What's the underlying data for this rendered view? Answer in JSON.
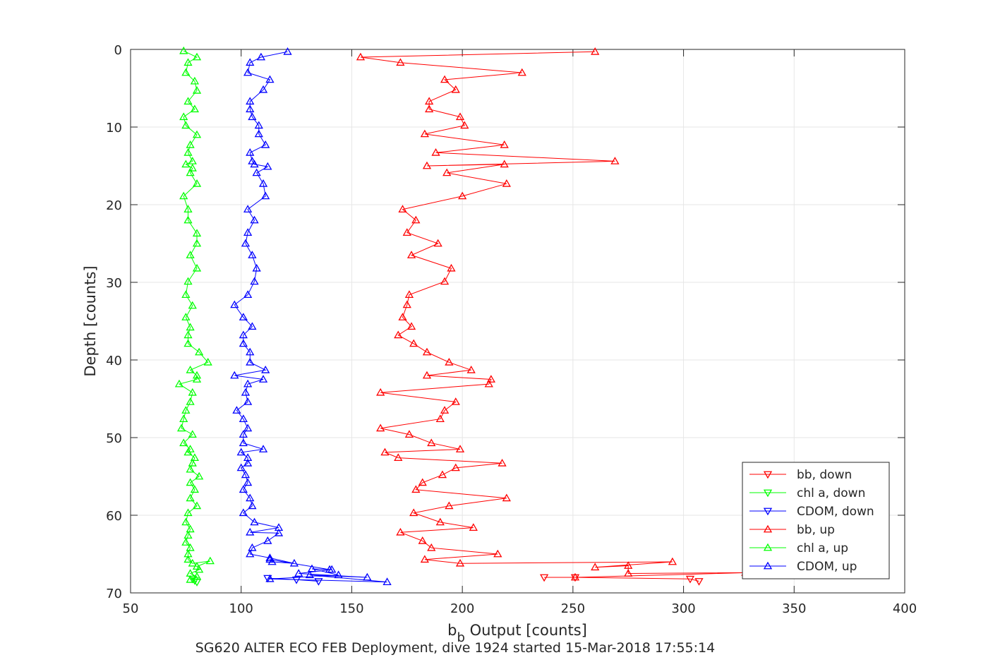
{
  "chart_data": {
    "type": "line",
    "title": "",
    "caption": "SG620 ALTER ECO FEB Deployment, dive 1924 started 15-Mar-2018 17:55:14",
    "xlabel_main": "b",
    "xlabel_sub": "b",
    "xlabel_rest": " Output [counts]",
    "ylabel": "Depth [counts]",
    "xlim": [
      50,
      400
    ],
    "ylim": [
      0,
      70
    ],
    "y_reversed": true,
    "grid": true,
    "legend_position": "bottom-right",
    "xticks": [
      50,
      100,
      150,
      200,
      250,
      300,
      350,
      400
    ],
    "yticks": [
      0,
      10,
      20,
      30,
      40,
      50,
      60,
      70
    ],
    "series": [
      {
        "name": "bb, down",
        "color": "#ff0000",
        "marker": "triangle-down",
        "x": [
          237,
          251,
          303,
          307
        ],
        "y": [
          68.0,
          68.0,
          68.2,
          68.5
        ]
      },
      {
        "name": "chl a, down",
        "color": "#00ff00",
        "marker": "triangle-down",
        "x": [
          78,
          79,
          80
        ],
        "y": [
          68.2,
          68.4,
          68.6
        ]
      },
      {
        "name": "CDOM, down",
        "color": "#0000ff",
        "marker": "triangle-down",
        "x": [
          112,
          125,
          135
        ],
        "y": [
          68.1,
          68.3,
          68.5
        ]
      },
      {
        "name": "bb, up",
        "color": "#ff0000",
        "marker": "triangle-up",
        "x": [
          260,
          154,
          172,
          227,
          192,
          197,
          185,
          185,
          199,
          201,
          183,
          219,
          188,
          269,
          184,
          219,
          193,
          220,
          200,
          173,
          179,
          175,
          189,
          177,
          195,
          192,
          176,
          175,
          173,
          177,
          171,
          178,
          184,
          194,
          204,
          184,
          213,
          212,
          163,
          197,
          192,
          190,
          163,
          176,
          186,
          199,
          165,
          171,
          218,
          197,
          191,
          182,
          179,
          220,
          194,
          178,
          190,
          205,
          172,
          182,
          186,
          216,
          183,
          199,
          295,
          260,
          275,
          275,
          328,
          251
        ],
        "y": [
          0.3,
          1.0,
          1.7,
          3.0,
          3.9,
          5.2,
          6.7,
          7.7,
          8.7,
          9.8,
          10.9,
          12.3,
          13.3,
          14.4,
          15.0,
          14.8,
          15.9,
          17.3,
          18.9,
          20.6,
          22.0,
          23.6,
          25.0,
          26.5,
          28.2,
          29.9,
          31.6,
          32.9,
          34.5,
          35.7,
          36.8,
          37.9,
          39.0,
          40.3,
          41.3,
          42.0,
          42.5,
          43.1,
          44.2,
          45.4,
          46.5,
          47.6,
          48.8,
          49.6,
          50.7,
          51.5,
          51.9,
          52.6,
          53.3,
          53.9,
          54.8,
          55.8,
          56.7,
          57.8,
          58.8,
          59.7,
          60.9,
          61.6,
          62.2,
          63.3,
          64.2,
          65.0,
          65.7,
          66.2,
          66.0,
          66.7,
          66.5,
          67.5,
          67.4,
          68.0
        ]
      },
      {
        "name": "chl a, up",
        "color": "#00ff00",
        "marker": "triangle-up",
        "x": [
          74,
          80,
          76,
          75,
          79,
          80,
          76,
          79,
          74,
          75,
          80,
          77,
          76,
          78,
          75,
          78,
          77,
          80,
          74,
          76,
          76,
          80,
          80,
          77,
          80,
          76,
          75,
          78,
          75,
          77,
          76,
          76,
          81,
          85,
          77,
          80,
          80,
          72,
          78,
          77,
          75,
          74,
          73,
          78,
          74,
          77,
          76,
          79,
          78,
          77,
          81,
          77,
          79,
          77,
          80,
          76,
          75,
          77,
          76,
          75,
          77,
          76,
          76,
          78,
          86,
          80,
          81,
          77,
          80,
          77
        ],
        "y": [
          0.2,
          1.0,
          1.7,
          3.0,
          4.1,
          5.3,
          6.7,
          7.7,
          8.7,
          9.8,
          11.0,
          12.3,
          13.3,
          14.4,
          14.8,
          15.3,
          15.9,
          17.3,
          18.9,
          20.6,
          22.0,
          23.7,
          25.0,
          26.5,
          28.2,
          29.9,
          31.6,
          33.0,
          34.5,
          35.8,
          36.8,
          37.9,
          39.0,
          40.3,
          41.3,
          42.0,
          42.5,
          43.1,
          44.2,
          45.4,
          46.5,
          47.6,
          48.8,
          49.6,
          50.7,
          51.5,
          51.9,
          52.6,
          53.3,
          54.1,
          55.0,
          55.8,
          56.7,
          57.8,
          58.8,
          59.7,
          60.9,
          61.8,
          62.6,
          63.5,
          64.2,
          65.0,
          65.7,
          66.2,
          65.9,
          66.6,
          67.0,
          67.5,
          67.9,
          68.3
        ]
      },
      {
        "name": "CDOM, up",
        "color": "#0000ff",
        "marker": "triangle-up",
        "x": [
          121,
          109,
          104,
          103,
          113,
          110,
          104,
          104,
          105,
          108,
          108,
          111,
          104,
          105,
          106,
          112,
          107,
          110,
          111,
          103,
          106,
          103,
          102,
          105,
          107,
          106,
          103,
          97,
          101,
          105,
          101,
          101,
          104,
          104,
          111,
          97,
          110,
          103,
          102,
          103,
          98,
          101,
          103,
          101,
          101,
          110,
          100,
          103,
          103,
          100,
          102,
          103,
          101,
          104,
          105,
          101,
          106,
          117,
          104,
          117,
          112,
          105,
          104,
          113,
          124,
          114,
          113,
          140,
          132,
          144,
          113,
          166,
          131,
          157,
          126,
          141
        ],
        "y": [
          0.3,
          1.0,
          1.7,
          3.0,
          3.9,
          5.2,
          6.7,
          7.7,
          8.7,
          9.8,
          10.9,
          12.3,
          13.3,
          14.4,
          14.8,
          15.1,
          15.9,
          17.3,
          18.9,
          20.6,
          22.0,
          23.6,
          25.0,
          26.5,
          28.2,
          29.9,
          31.6,
          32.9,
          34.5,
          35.7,
          36.8,
          37.9,
          39.0,
          40.3,
          41.3,
          42.0,
          42.5,
          43.1,
          44.2,
          45.4,
          46.5,
          47.6,
          48.8,
          49.6,
          50.7,
          51.5,
          51.9,
          52.6,
          53.3,
          53.9,
          54.8,
          55.8,
          56.7,
          57.8,
          58.8,
          59.7,
          60.9,
          61.6,
          62.2,
          62.3,
          63.3,
          64.2,
          65.0,
          65.5,
          66.2,
          66.0,
          65.7,
          67.0,
          66.9,
          67.7,
          68.2,
          68.6,
          67.7,
          68.0,
          67.5,
          67.0
        ]
      }
    ]
  }
}
